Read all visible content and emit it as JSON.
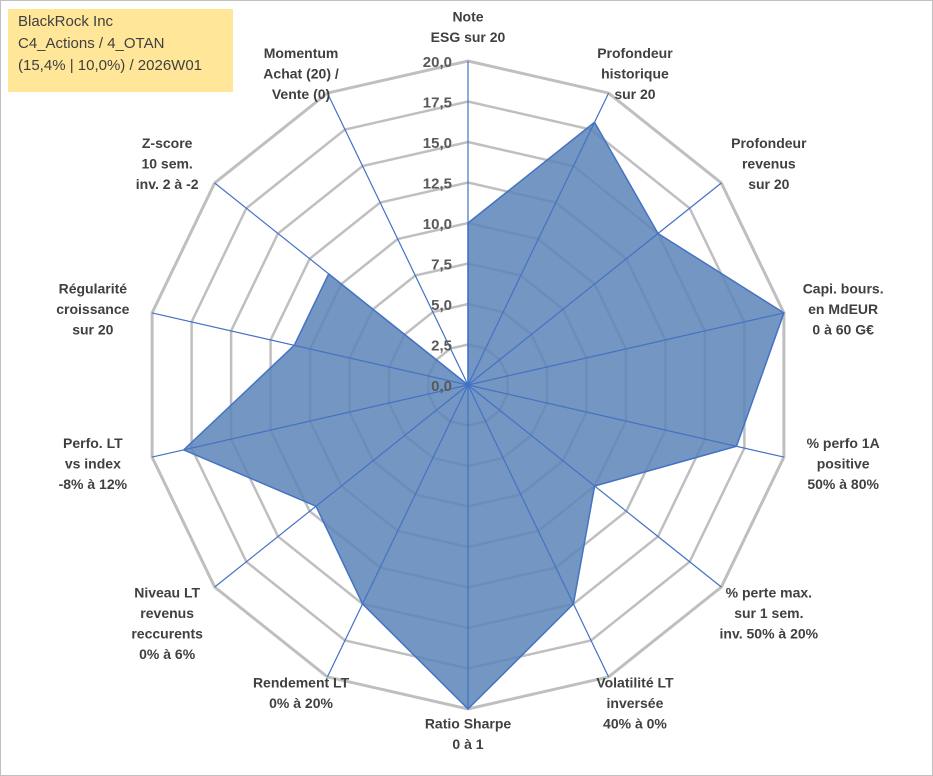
{
  "header": {
    "company": "BlackRock Inc",
    "line2": "C4_Actions / 4_OTAN",
    "line3": "(15,4% | 10,0%) / 2026W01"
  },
  "colors": {
    "fill": "#5b84b8",
    "outline": "#4472c4",
    "grid": "#bfbfbf",
    "spoke": "#4472c4",
    "title_bg": "#ffe699"
  },
  "chart_data": {
    "type": "radar",
    "title": "",
    "rlim": [
      0,
      20
    ],
    "ticks": [
      "0,0",
      "2,5",
      "5,0",
      "7,5",
      "10,0",
      "12,5",
      "15,0",
      "17,5",
      "20,0"
    ],
    "tick_values": [
      0,
      2.5,
      5,
      7.5,
      10,
      12.5,
      15,
      17.5,
      20
    ],
    "axes": [
      {
        "label": [
          "Note",
          "ESG sur 20"
        ],
        "value": 10
      },
      {
        "label": [
          "Profondeur",
          "historique",
          "sur 20"
        ],
        "value": 18
      },
      {
        "label": [
          "Profondeur",
          "revenus",
          "sur 20"
        ],
        "value": 15
      },
      {
        "label": [
          "Capi. bours.",
          "en MdEUR",
          "0 à 60 G€"
        ],
        "value": 20
      },
      {
        "label": [
          "% perfo 1A",
          "positive",
          "50% à 80%"
        ],
        "value": 17
      },
      {
        "label": [
          "% perte max.",
          "sur 1 sem.",
          "inv. 50% à 20%"
        ],
        "value": 10
      },
      {
        "label": [
          "Volatilité LT",
          "inversée",
          "40% à 0%"
        ],
        "value": 15
      },
      {
        "label": [
          "Ratio Sharpe",
          "0 à 1"
        ],
        "value": 20
      },
      {
        "label": [
          "Rendement LT",
          "0% à 20%"
        ],
        "value": 15
      },
      {
        "label": [
          "Niveau LT",
          "revenus",
          "reccurents",
          "0% à 6%"
        ],
        "value": 12
      },
      {
        "label": [
          "Perfo. LT",
          "vs index",
          "-8% à 12%"
        ],
        "value": 18
      },
      {
        "label": [
          "Régularité",
          "croissance",
          "sur 20"
        ],
        "value": 11
      },
      {
        "label": [
          "Z-score",
          "10 sem.",
          "inv. 2 à -2"
        ],
        "value": 11
      },
      {
        "label": [
          "Momentum",
          "Achat (20) /",
          "Vente (0)"
        ],
        "value": 0
      }
    ]
  }
}
